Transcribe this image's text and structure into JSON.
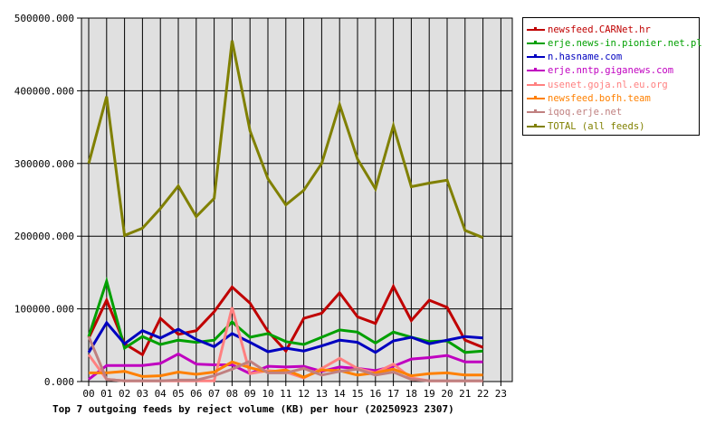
{
  "chart_data": {
    "type": "line",
    "title": "Top 7 outgoing feeds by reject volume (KB) per hour (20250923 2307)",
    "xlabel": "",
    "ylabel": "",
    "ylim": [
      0,
      500000
    ],
    "grid": true,
    "legend_position": "right",
    "y_ticks": [
      "0.000",
      "100000.000",
      "200000.000",
      "300000.000",
      "400000.000",
      "500000.000"
    ],
    "x": [
      "00",
      "01",
      "02",
      "03",
      "04",
      "05",
      "06",
      "07",
      "08",
      "09",
      "10",
      "11",
      "12",
      "13",
      "14",
      "15",
      "16",
      "17",
      "18",
      "19",
      "20",
      "21",
      "22",
      "23"
    ],
    "series": [
      {
        "name": "newsfeed.CARNet.hr",
        "color": "#c00000",
        "values": [
          60000,
          112000,
          52000,
          37000,
          87000,
          65000,
          70000,
          96000,
          130000,
          108000,
          69000,
          42000,
          87000,
          94000,
          122000,
          89000,
          80000,
          131000,
          84000,
          112000,
          102000,
          57000,
          47000
        ]
      },
      {
        "name": "erje.news-in.pionier.net.pl",
        "color": "#00a000",
        "values": [
          62000,
          138000,
          46000,
          62000,
          51000,
          57000,
          54000,
          57000,
          82000,
          61000,
          66000,
          55000,
          51000,
          61000,
          71000,
          68000,
          53000,
          68000,
          61000,
          55000,
          56000,
          40000,
          42000
        ]
      },
      {
        "name": "n.hasname.com",
        "color": "#0000c0",
        "values": [
          40000,
          81000,
          52000,
          70000,
          60000,
          72000,
          58000,
          48000,
          66000,
          54000,
          41000,
          46000,
          42000,
          49000,
          57000,
          54000,
          40000,
          56000,
          61000,
          52000,
          57000,
          62000,
          60000
        ]
      },
      {
        "name": "erje.nntp.giganews.com",
        "color": "#c000c0",
        "values": [
          3000,
          22000,
          22000,
          22000,
          25000,
          38000,
          24000,
          23000,
          23000,
          11000,
          21000,
          20000,
          21000,
          14000,
          20000,
          18000,
          15000,
          21000,
          31000,
          33000,
          36000,
          27000,
          27000
        ]
      },
      {
        "name": "usenet.goja.nl.eu.org",
        "color": "#ff8080",
        "values": [
          37000,
          3000,
          1000,
          1000,
          1000,
          1000,
          1000,
          1000,
          102000,
          11000,
          15000,
          13000,
          5000,
          18000,
          32000,
          18000,
          12000,
          24000,
          5000,
          1000,
          1000,
          1000,
          1000
        ]
      },
      {
        "name": "newsfeed.bofh.team",
        "color": "#ff8000",
        "values": [
          12000,
          12000,
          14000,
          7000,
          8000,
          13000,
          10000,
          13000,
          27000,
          19000,
          13000,
          16000,
          6000,
          16000,
          15000,
          9000,
          12000,
          17000,
          8000,
          11000,
          12000,
          9000,
          9000
        ]
      },
      {
        "name": "iqoq.erje.net",
        "color": "#c08080",
        "values": [
          62000,
          3000,
          1000,
          1000,
          1000,
          2000,
          2000,
          8000,
          17000,
          28000,
          12000,
          12000,
          18000,
          9000,
          14000,
          17000,
          9000,
          13000,
          3000,
          1000,
          1000,
          1000,
          1000
        ]
      },
      {
        "name": "TOTAL (all feeds)",
        "color": "#808000",
        "values": [
          300000,
          392000,
          201000,
          211000,
          238000,
          269000,
          227000,
          252000,
          469000,
          345000,
          279000,
          243000,
          263000,
          300000,
          381000,
          306000,
          265000,
          352000,
          268000,
          273000,
          277000,
          208000,
          198000
        ]
      }
    ]
  }
}
